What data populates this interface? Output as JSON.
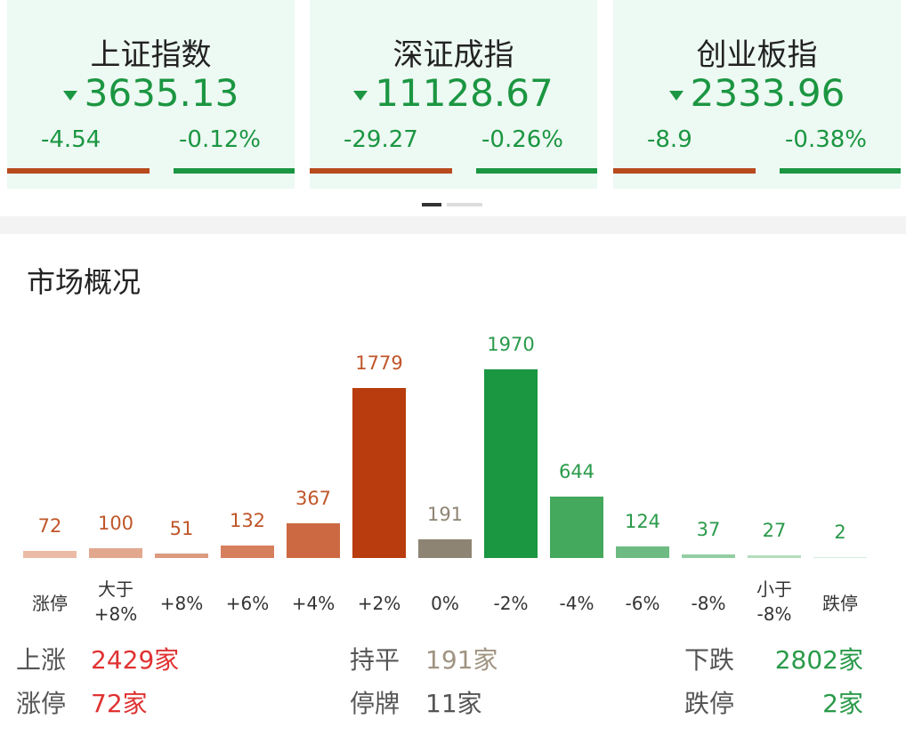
{
  "cards": [
    {
      "name": "上证指数",
      "value": "3635.13",
      "change": "-4.54",
      "pct": "-0.12%"
    },
    {
      "name": "深证成指",
      "value": "11128.67",
      "change": "-29.27",
      "pct": "-0.26%"
    },
    {
      "name": "创业板指",
      "value": "2333.96",
      "change": "-8.9",
      "pct": "-0.38%"
    }
  ],
  "section_title": "市场概况",
  "chart_data": {
    "type": "bar",
    "categories": [
      "涨停",
      "大于 +8%",
      "+8%",
      "+6%",
      "+4%",
      "+2%",
      "0%",
      "-2%",
      "-4%",
      "-6%",
      "-8%",
      "小于 -8%",
      "跌停"
    ],
    "values": [
      72,
      100,
      51,
      132,
      367,
      1779,
      191,
      1970,
      644,
      124,
      37,
      27,
      2
    ],
    "colors": [
      "#ebbba6",
      "#e2a88e",
      "#dc9a7e",
      "#d67f5c",
      "#cd6942",
      "#b83c0e",
      "#8e8473",
      "#1b9641",
      "#44a85d",
      "#6dbb82",
      "#92cea1",
      "#b3ddbd",
      "#d3eed9"
    ],
    "label_colors": [
      "#c0562a",
      "#c0562a",
      "#c0562a",
      "#c0562a",
      "#c0562a",
      "#c0562a",
      "#8e8473",
      "#2a9a4a",
      "#2a9a4a",
      "#2a9a4a",
      "#2a9a4a",
      "#2a9a4a",
      "#2a9a4a"
    ]
  },
  "stats": [
    [
      {
        "label": "上涨",
        "value": "2429家"
      },
      {
        "label": "持平",
        "value": "191家"
      },
      {
        "label": "下跌",
        "value": "2802家"
      }
    ],
    [
      {
        "label": "涨停",
        "value": "72家"
      },
      {
        "label": "停牌",
        "value": "11家"
      },
      {
        "label": "跌停",
        "value": "2家"
      }
    ]
  ]
}
